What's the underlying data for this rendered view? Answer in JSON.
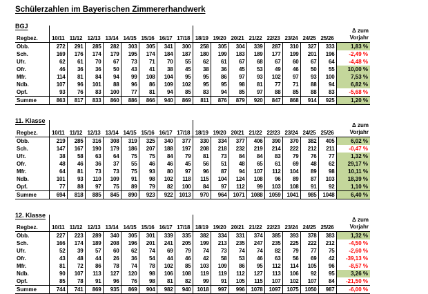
{
  "title": "Schülerzahlen im Bayerischen Zimmererhandwerk",
  "columns": {
    "row_header": "Regbez.",
    "years": [
      "10/11",
      "11/12",
      "12/13",
      "13/14",
      "14/15",
      "15/16",
      "16/17",
      "17/18",
      "18/19",
      "19/20",
      "20/21",
      "21/22",
      "22/23",
      "23/24",
      "24/25",
      "25/26"
    ],
    "delta_line1": "Δ zum",
    "delta_line2": "Vorjahr"
  },
  "colors": {
    "positive_bg": "#c4d79b",
    "negative_text": "#ff0000"
  },
  "tables": [
    {
      "label": "BGJ",
      "rows": [
        {
          "label": "Obb.",
          "values": [
            272,
            291,
            285,
            282,
            303,
            305,
            341,
            300,
            258,
            305,
            304,
            339,
            287,
            310,
            327,
            333
          ],
          "delta": "1,83 %",
          "delta_positive": true,
          "is_sum": false
        },
        {
          "label": "Sch.",
          "values": [
            169,
            176,
            174,
            179,
            195,
            174,
            184,
            187,
            180,
            199,
            183,
            189,
            177,
            199,
            201,
            196
          ],
          "delta": "-2,49 %",
          "delta_positive": false,
          "is_sum": false
        },
        {
          "label": "Ufr.",
          "values": [
            62,
            61,
            70,
            67,
            73,
            71,
            70,
            55,
            62,
            61,
            67,
            68,
            67,
            60,
            67,
            64
          ],
          "delta": "-4,48 %",
          "delta_positive": false,
          "is_sum": false
        },
        {
          "label": "Ofr.",
          "values": [
            46,
            36,
            36,
            50,
            43,
            41,
            38,
            45,
            38,
            36,
            45,
            53,
            49,
            46,
            50,
            55
          ],
          "delta": "10,00 %",
          "delta_positive": true,
          "is_sum": false
        },
        {
          "label": "Mfr.",
          "values": [
            114,
            81,
            84,
            94,
            99,
            108,
            104,
            95,
            95,
            86,
            97,
            93,
            102,
            97,
            93,
            100
          ],
          "delta": "7,53 %",
          "delta_positive": true,
          "is_sum": false
        },
        {
          "label": "Ndb.",
          "values": [
            107,
            96,
            101,
            88,
            96,
            86,
            109,
            102,
            95,
            95,
            98,
            81,
            77,
            71,
            88,
            94
          ],
          "delta": "6,82 %",
          "delta_positive": true,
          "is_sum": false
        },
        {
          "label": "Opf.",
          "values": [
            93,
            76,
            83,
            100,
            77,
            81,
            94,
            85,
            83,
            94,
            85,
            97,
            88,
            85,
            88,
            83
          ],
          "delta": "-5,68 %",
          "delta_positive": false,
          "is_sum": false
        },
        {
          "label": "Summe",
          "values": [
            863,
            817,
            833,
            860,
            886,
            866,
            940,
            869,
            811,
            876,
            879,
            920,
            847,
            868,
            914,
            925
          ],
          "delta": "1,20 %",
          "delta_positive": true,
          "is_sum": true
        }
      ]
    },
    {
      "label": "11. Klasse",
      "rows": [
        {
          "label": "Obb.",
          "values": [
            219,
            285,
            316,
            308,
            319,
            325,
            340,
            377,
            330,
            334,
            377,
            406,
            390,
            370,
            382,
            405
          ],
          "delta": "6,02 %",
          "delta_positive": true,
          "is_sum": false
        },
        {
          "label": "Sch.",
          "values": [
            147,
            167,
            190,
            179,
            186,
            207,
            188,
            197,
            208,
            218,
            232,
            219,
            214,
            222,
            212,
            211
          ],
          "delta": "-0,47 %",
          "delta_positive": false,
          "is_sum": false
        },
        {
          "label": "Ufr.",
          "values": [
            38,
            58,
            63,
            64,
            75,
            75,
            84,
            79,
            81,
            73,
            84,
            84,
            83,
            79,
            76,
            77
          ],
          "delta": "1,32 %",
          "delta_positive": true,
          "is_sum": false
        },
        {
          "label": "Ofr.",
          "values": [
            48,
            46,
            36,
            37,
            55,
            46,
            46,
            45,
            56,
            51,
            48,
            65,
            61,
            69,
            48,
            62
          ],
          "delta": "29,17 %",
          "delta_positive": true,
          "is_sum": false
        },
        {
          "label": "Mfr.",
          "values": [
            64,
            81,
            73,
            73,
            75,
            93,
            80,
            97,
            96,
            87,
            94,
            107,
            112,
            104,
            89,
            98
          ],
          "delta": "10,11 %",
          "delta_positive": true,
          "is_sum": false
        },
        {
          "label": "Ndb.",
          "values": [
            101,
            93,
            110,
            109,
            91,
            98,
            102,
            118,
            115,
            104,
            124,
            108,
            96,
            89,
            87,
            103
          ],
          "delta": "18,39 %",
          "delta_positive": true,
          "is_sum": false
        },
        {
          "label": "Opf.",
          "values": [
            77,
            88,
            97,
            75,
            89,
            79,
            82,
            100,
            84,
            97,
            112,
            99,
            103,
            108,
            91,
            92
          ],
          "delta": "1,10 %",
          "delta_positive": true,
          "is_sum": false
        },
        {
          "label": "Summe",
          "values": [
            694,
            818,
            885,
            845,
            890,
            923,
            922,
            1013,
            970,
            964,
            1071,
            1088,
            1059,
            1041,
            985,
            1048
          ],
          "delta": "6,40 %",
          "delta_positive": true,
          "is_sum": true
        }
      ]
    },
    {
      "label": "12. Klasse",
      "rows": [
        {
          "label": "Obb.",
          "values": [
            227,
            223,
            289,
            340,
            305,
            301,
            339,
            335,
            382,
            334,
            331,
            374,
            385,
            393,
            378,
            383
          ],
          "delta": "1,32 %",
          "delta_positive": true,
          "is_sum": false
        },
        {
          "label": "Sch.",
          "values": [
            166,
            174,
            189,
            208,
            196,
            201,
            241,
            205,
            199,
            213,
            235,
            247,
            235,
            225,
            222,
            212
          ],
          "delta": "-4,50 %",
          "delta_positive": false,
          "is_sum": false
        },
        {
          "label": "Ufr.",
          "values": [
            52,
            39,
            57,
            60,
            62,
            74,
            69,
            79,
            74,
            73,
            74,
            74,
            82,
            79,
            77,
            75
          ],
          "delta": "-2,60 %",
          "delta_positive": false,
          "is_sum": false
        },
        {
          "label": "Ofr.",
          "values": [
            43,
            48,
            44,
            26,
            36,
            54,
            44,
            46,
            42,
            58,
            53,
            46,
            63,
            56,
            69,
            42
          ],
          "delta": "-39,13 %",
          "delta_positive": false,
          "is_sum": false
        },
        {
          "label": "Mfr.",
          "values": [
            81,
            72,
            86,
            78,
            74,
            78,
            102,
            85,
            103,
            109,
            86,
            95,
            112,
            114,
            105,
            96
          ],
          "delta": "-8,57 %",
          "delta_positive": false,
          "is_sum": false
        },
        {
          "label": "Ndb.",
          "values": [
            90,
            107,
            113,
            127,
            120,
            98,
            106,
            108,
            119,
            119,
            112,
            127,
            113,
            106,
            92,
            95
          ],
          "delta": "3,26 %",
          "delta_positive": true,
          "is_sum": false
        },
        {
          "label": "Opf.",
          "values": [
            85,
            78,
            91,
            96,
            76,
            98,
            81,
            82,
            99,
            91,
            105,
            115,
            107,
            102,
            107,
            84
          ],
          "delta": "-21,50 %",
          "delta_positive": false,
          "is_sum": false
        },
        {
          "label": "Summe",
          "values": [
            744,
            741,
            869,
            935,
            869,
            904,
            982,
            940,
            1018,
            997,
            996,
            1078,
            1097,
            1075,
            1050,
            987
          ],
          "delta": "-6,00 %",
          "delta_positive": false,
          "is_sum": true
        }
      ]
    }
  ]
}
